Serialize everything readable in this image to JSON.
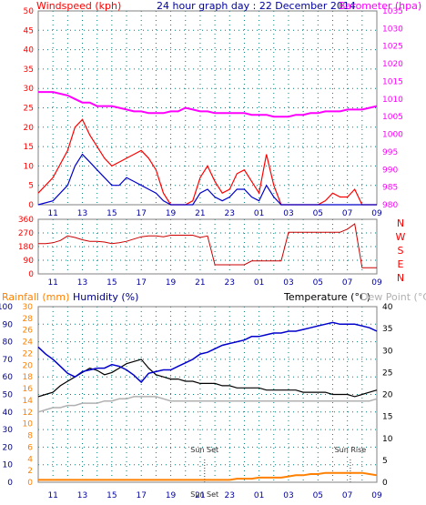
{
  "title": "24 hour graph day : 22 December 2014",
  "x_ticks": [
    "11",
    "13",
    "15",
    "17",
    "19",
    "21",
    "23",
    "01",
    "03",
    "05",
    "07",
    "09"
  ],
  "colors": {
    "windspeed": "#ff0000",
    "gust": "#0000cc",
    "avg_wind": "#008000",
    "barometer": "#ff00ff",
    "wind_dir": "#cc0000",
    "temperature": "#000000",
    "humidity": "#0000cc",
    "dew_point": "#b0b0b0",
    "rainfall": "#ff8000",
    "axis": "#0000a0",
    "grid": "#008080"
  },
  "chart_data": [
    {
      "type": "line",
      "panel": "wind-barometer",
      "left_label": "Windspeed (kph)",
      "right_label": "Barometer (hpa)",
      "y_left_ticks": [
        "50",
        "45",
        "40",
        "35",
        "30",
        "25",
        "20",
        "15",
        "10",
        "5",
        "0"
      ],
      "y_right_ticks": [
        "1035",
        "1030",
        "1025",
        "1020",
        "1015",
        "1010",
        "1005",
        "1000",
        "995",
        "990",
        "985",
        "980"
      ],
      "ylim_left": [
        0,
        50
      ],
      "ylim_right": [
        980,
        1035
      ],
      "x": [
        10,
        11,
        12,
        12.5,
        13,
        13.5,
        14,
        14.5,
        15,
        15.5,
        16,
        16.5,
        17,
        17.5,
        18,
        18.5,
        19,
        19.5,
        20,
        20.5,
        21,
        21.5,
        22,
        22.5,
        23,
        23.5,
        24,
        24.5,
        25,
        25.5,
        26,
        26.5,
        27,
        27.5,
        28,
        28.5,
        29,
        29.5,
        30,
        30.5,
        31,
        31.5,
        32,
        32.5,
        33
      ],
      "series": [
        {
          "name": "Windspeed",
          "values": [
            3,
            7,
            14,
            20,
            22,
            18,
            15,
            12,
            10,
            11,
            12,
            13,
            14,
            12,
            9,
            3,
            0,
            0,
            0,
            1,
            7,
            10,
            6,
            3,
            4,
            8,
            9,
            6,
            3,
            13,
            5,
            0,
            0,
            0,
            0,
            0,
            0,
            1,
            3,
            2,
            2,
            4,
            0,
            0,
            0
          ]
        },
        {
          "name": "Gust",
          "values": [
            0,
            1,
            5,
            10,
            13,
            11,
            9,
            7,
            5,
            5,
            7,
            6,
            5,
            4,
            3,
            1,
            0,
            0,
            0,
            0,
            3,
            4,
            2,
            1,
            2,
            4,
            4,
            2,
            1,
            5,
            2,
            0,
            0,
            0,
            0,
            0,
            0,
            0,
            0,
            0,
            0,
            0,
            0,
            0,
            0
          ]
        },
        {
          "name": "Barometer",
          "values": [
            1012,
            1012,
            1011,
            1010,
            1009,
            1009,
            1008,
            1008,
            1008,
            1007.5,
            1007,
            1006.5,
            1006.5,
            1006,
            1006,
            1006,
            1006.5,
            1006.5,
            1007.5,
            1007,
            1006.5,
            1006.5,
            1006,
            1006,
            1006,
            1006,
            1006,
            1005.5,
            1005.5,
            1005.5,
            1005,
            1005,
            1005,
            1005.5,
            1005.5,
            1006,
            1006,
            1006.5,
            1006.5,
            1006.5,
            1007,
            1007,
            1007,
            1007.5,
            1008
          ]
        }
      ]
    },
    {
      "type": "line",
      "panel": "wind-direction",
      "y_left_ticks": [
        "360",
        "270",
        "180",
        "90",
        "0"
      ],
      "y_right_ticks": [
        "N",
        "W",
        "S",
        "E",
        "N"
      ],
      "ylim": [
        0,
        360
      ],
      "x": [
        10,
        10.5,
        11,
        11.5,
        12,
        12.5,
        13,
        13.5,
        14,
        14.5,
        15,
        15.5,
        16,
        16.5,
        17,
        17.5,
        18,
        18.5,
        19,
        19.5,
        20,
        20.5,
        21,
        21.5,
        22,
        22.5,
        23,
        23.5,
        24,
        24.5,
        25,
        25.5,
        26,
        26.5,
        27,
        27.5,
        28,
        28.5,
        29,
        29.5,
        30,
        30.5,
        31,
        31.5,
        32,
        32.5,
        33
      ],
      "series": [
        {
          "name": "Wind direction",
          "values": [
            200,
            200,
            205,
            220,
            250,
            240,
            225,
            215,
            215,
            210,
            200,
            205,
            215,
            230,
            245,
            250,
            250,
            245,
            255,
            255,
            255,
            255,
            240,
            250,
            60,
            60,
            60,
            60,
            60,
            85,
            85,
            85,
            85,
            85,
            275,
            275,
            275,
            275,
            275,
            275,
            275,
            275,
            295,
            330,
            40,
            40,
            40
          ]
        }
      ]
    },
    {
      "type": "line",
      "panel": "temperature-humidity-rain",
      "left_labels": [
        "Rainfall (mm)",
        "Humidity (%)"
      ],
      "right_labels": [
        "Temperature (°C)",
        "Dew Point (°C)"
      ],
      "y_humidity_ticks": [
        "100",
        "90",
        "80",
        "70",
        "60",
        "50",
        "40",
        "30",
        "20",
        "10",
        "0"
      ],
      "y_rain_ticks": [
        "30",
        "28",
        "26",
        "24",
        "22",
        "20",
        "18",
        "16",
        "14",
        "12",
        "10",
        "8",
        "6",
        "4",
        "2",
        "0"
      ],
      "y_temp_ticks": [
        "40",
        "35",
        "30",
        "25",
        "20",
        "15",
        "10",
        "5",
        "0"
      ],
      "ylim_humidity": [
        0,
        100
      ],
      "ylim_rain": [
        0,
        30
      ],
      "ylim_temp": [
        0,
        40
      ],
      "annotations": [
        "Sun Set",
        "Sun Rise",
        "Sun Set"
      ],
      "x": [
        10,
        10.5,
        11,
        11.5,
        12,
        12.5,
        13,
        13.5,
        14,
        14.5,
        15,
        15.5,
        16,
        16.5,
        17,
        17.5,
        18,
        18.5,
        19,
        19.5,
        20,
        20.5,
        21,
        21.5,
        22,
        22.5,
        23,
        23.5,
        24,
        24.5,
        25,
        25.5,
        26,
        26.5,
        27,
        27.5,
        28,
        28.5,
        29,
        29.5,
        30,
        30.5,
        31,
        31.5,
        32,
        32.5,
        33
      ],
      "series": [
        {
          "name": "Temperature",
          "values": [
            19.5,
            20,
            20.5,
            22,
            23,
            24,
            25,
            26,
            25.5,
            24.5,
            25,
            26,
            27,
            27.5,
            28,
            26,
            24.5,
            24,
            23.5,
            23.5,
            23,
            23,
            22.5,
            22.5,
            22.5,
            22,
            22,
            21.5,
            21.5,
            21.5,
            21.5,
            21,
            21,
            21,
            21,
            21,
            20.5,
            20.5,
            20.5,
            20.5,
            20,
            20,
            20,
            19.5,
            20,
            20.5,
            21
          ]
        },
        {
          "name": "Humidity",
          "values": [
            77,
            73,
            70,
            66,
            62,
            60,
            63,
            64,
            65,
            65,
            67,
            66,
            64,
            61,
            57,
            62,
            63,
            64,
            64,
            66,
            68,
            70,
            73,
            74,
            76,
            78,
            79,
            80,
            81,
            83,
            83,
            84,
            85,
            85,
            86,
            86,
            87,
            88,
            89,
            90,
            91,
            90,
            90,
            90,
            89,
            88,
            86
          ]
        },
        {
          "name": "Dew Point",
          "values": [
            16,
            16.5,
            17,
            17,
            17.5,
            17.5,
            18,
            18,
            18,
            18.5,
            18.5,
            19,
            19,
            19.5,
            19.5,
            19.5,
            19.5,
            19,
            18.5,
            18.5,
            18.5,
            18.5,
            18.5,
            18.5,
            18.5,
            18.5,
            18.5,
            18.5,
            18.5,
            18.5,
            18.5,
            18.5,
            18.5,
            18.5,
            18.5,
            18.5,
            18.5,
            18.5,
            18.5,
            18.5,
            18.5,
            18.5,
            18.5,
            18.5,
            18.5,
            18.5,
            19
          ]
        },
        {
          "name": "Rainfall",
          "values": [
            0.4,
            0.4,
            0.4,
            0.4,
            0.4,
            0.4,
            0.4,
            0.4,
            0.4,
            0.4,
            0.4,
            0.4,
            0.4,
            0.4,
            0.4,
            0.4,
            0.4,
            0.4,
            0.4,
            0.4,
            0.4,
            0.4,
            0.4,
            0.4,
            0.4,
            0.4,
            0.4,
            0.6,
            0.6,
            0.6,
            0.8,
            0.8,
            0.8,
            0.8,
            1.0,
            1.2,
            1.2,
            1.4,
            1.4,
            1.6,
            1.6,
            1.6,
            1.6,
            1.6,
            1.6,
            1.4,
            1.2
          ]
        }
      ]
    }
  ]
}
